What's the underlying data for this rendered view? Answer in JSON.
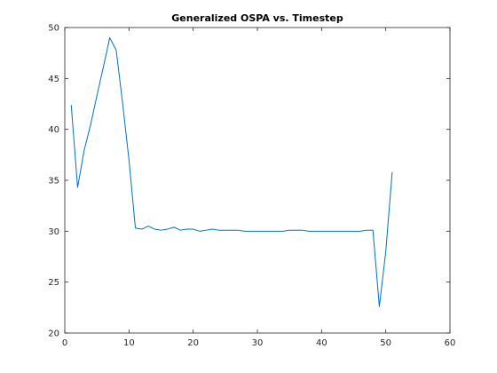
{
  "chart_data": {
    "type": "line",
    "title": "Generalized OSPA vs. Timestep",
    "xlabel": "",
    "ylabel": "",
    "xlim": [
      0,
      60
    ],
    "ylim": [
      20,
      50
    ],
    "xticks": [
      0,
      10,
      20,
      30,
      40,
      50,
      60
    ],
    "yticks": [
      20,
      25,
      30,
      35,
      40,
      45,
      50
    ],
    "grid": false,
    "box": true,
    "series": [
      {
        "color": "#0072BD",
        "x": [
          1,
          2,
          3,
          4,
          5,
          6,
          7,
          8,
          9,
          10,
          11,
          12,
          13,
          14,
          15,
          16,
          17,
          18,
          19,
          20,
          21,
          22,
          23,
          24,
          25,
          26,
          27,
          28,
          29,
          30,
          31,
          32,
          33,
          34,
          35,
          36,
          37,
          38,
          39,
          40,
          41,
          42,
          43,
          44,
          45,
          46,
          47,
          48,
          49,
          50,
          51
        ],
        "y": [
          42.4,
          34.3,
          37.9,
          40.4,
          43.3,
          46.1,
          49.0,
          47.8,
          42.6,
          37.0,
          30.3,
          30.2,
          30.5,
          30.2,
          30.1,
          30.2,
          30.4,
          30.1,
          30.2,
          30.2,
          30.0,
          30.1,
          30.2,
          30.1,
          30.1,
          30.1,
          30.1,
          30.0,
          30.0,
          30.0,
          30.0,
          30.0,
          30.0,
          30.0,
          30.1,
          30.1,
          30.1,
          30.0,
          30.0,
          30.0,
          30.0,
          30.0,
          30.0,
          30.0,
          30.0,
          30.0,
          30.1,
          30.1,
          22.6,
          28.0,
          35.8
        ]
      }
    ]
  }
}
